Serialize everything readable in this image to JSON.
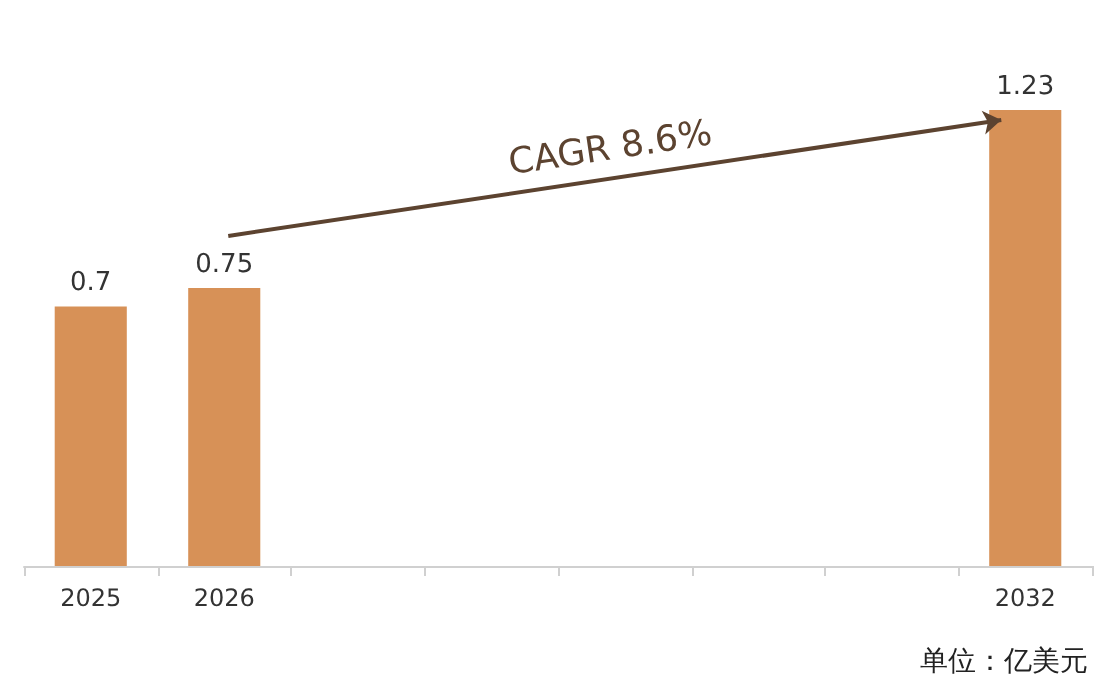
{
  "chart_data": {
    "type": "bar",
    "data_labels": true,
    "categories": [
      "2025",
      "2026",
      null,
      null,
      null,
      null,
      null,
      "2032"
    ],
    "values": [
      0.7,
      0.75,
      null,
      null,
      null,
      null,
      null,
      1.23
    ],
    "color": "#d79157",
    "annotations": [
      "CAGR 8.6%",
      "单位：亿美元"
    ]
  }
}
